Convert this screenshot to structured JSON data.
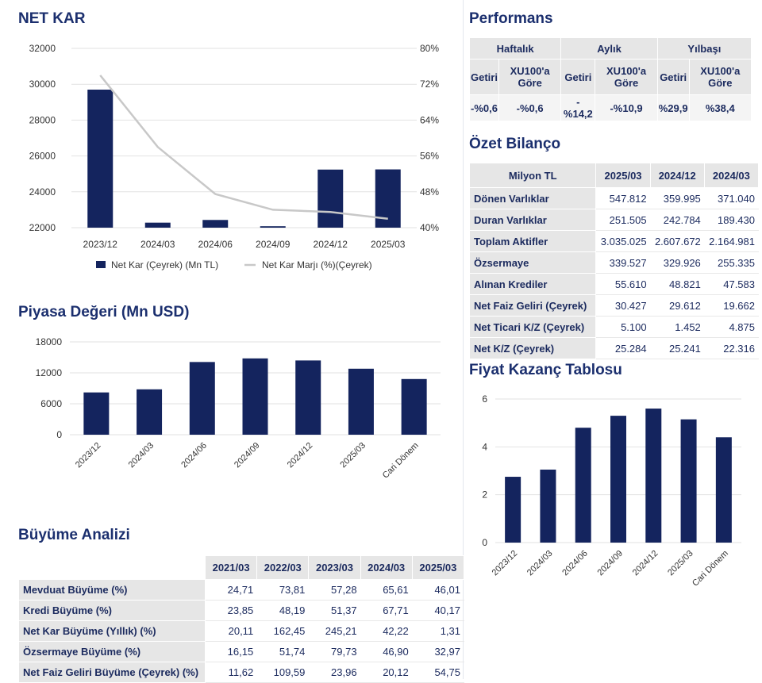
{
  "titles": {
    "net_kar": "NET KAR",
    "piyasa": "Piyasa Değeri (Mn USD)",
    "buyume": "Büyüme Analizi",
    "performans": "Performans",
    "ozet": "Özet Bilanço",
    "fk": "Fiyat Kazanç Tablosu"
  },
  "colors": {
    "bar": "#14245e",
    "line": "#c8c8c8",
    "title": "#1b2f6e",
    "header_bg": "#e6e6e6"
  },
  "chart_data": [
    {
      "type": "bar",
      "categories": [
        "2023/12",
        "2024/03",
        "2024/06",
        "2024/09",
        "2024/12",
        "2025/03"
      ],
      "series": [
        {
          "name": "Net Kar (Çeyrek) (Mn TL)",
          "values": [
            29700,
            22280,
            22430,
            22080,
            25240,
            25250
          ],
          "axis": "left"
        },
        {
          "name": "Net Kar Marjı (%)(Çeyrek)",
          "type": "line",
          "values": [
            74,
            58,
            47.5,
            44,
            43.5,
            42
          ],
          "axis": "right"
        }
      ],
      "y_left": {
        "ticks": [
          "32000",
          "30000",
          "28000",
          "26000",
          "24000",
          "22000"
        ],
        "min": 22000,
        "max": 32000
      },
      "y_right": {
        "ticks": [
          "80%",
          "72%",
          "64%",
          "56%",
          "48%",
          "40%"
        ],
        "min": 40,
        "max": 80
      },
      "legend": "bottom"
    },
    {
      "type": "bar",
      "categories": [
        "2023/12",
        "2024/03",
        "2024/06",
        "2024/09",
        "2024/12",
        "2025/03",
        "Cari Dönem"
      ],
      "values": [
        8200,
        8800,
        14100,
        14800,
        14400,
        12800,
        10800
      ],
      "y_ticks": [
        "18000",
        "12000",
        "6000",
        "0"
      ],
      "ylim": [
        0,
        18000
      ]
    },
    {
      "type": "bar",
      "categories": [
        "2023/12",
        "2024/03",
        "2024/06",
        "2024/09",
        "2024/12",
        "2025/03",
        "Cari Dönem"
      ],
      "values": [
        2.75,
        3.05,
        4.8,
        5.3,
        5.6,
        5.15,
        4.4
      ],
      "y_ticks": [
        "6",
        "4",
        "2",
        "0"
      ],
      "ylim": [
        0,
        6
      ]
    }
  ],
  "performans": {
    "groups": [
      "Haftalık",
      "Aylık",
      "Yılbaşı"
    ],
    "subheaders": [
      "Getiri",
      "XU100'a Göre",
      "Getiri",
      "XU100'a Göre",
      "Getiri",
      "XU100'a Göre"
    ],
    "values": [
      "-%0,6",
      "-%0,6",
      "-%14,2",
      "-%10,9",
      "%29,9",
      "%38,4"
    ]
  },
  "ozet": {
    "header": [
      "Milyon TL",
      "2025/03",
      "2024/12",
      "2024/03"
    ],
    "rows": [
      [
        "Dönen Varlıklar",
        "547.812",
        "359.995",
        "371.040"
      ],
      [
        "Duran Varlıklar",
        "251.505",
        "242.784",
        "189.430"
      ],
      [
        "Toplam Aktifler",
        "3.035.025",
        "2.607.672",
        "2.164.981"
      ],
      [
        "Özsermaye",
        "339.527",
        "329.926",
        "255.335"
      ],
      [
        "Alınan Krediler",
        "55.610",
        "48.821",
        "47.583"
      ],
      [
        "Net Faiz Geliri (Çeyrek)",
        "30.427",
        "29.612",
        "19.662"
      ],
      [
        "Net Ticari K/Z (Çeyrek)",
        "5.100",
        "1.452",
        "4.875"
      ],
      [
        "Net K/Z (Çeyrek)",
        "25.284",
        "25.241",
        "22.316"
      ]
    ]
  },
  "buyume": {
    "header": [
      "",
      "2021/03",
      "2022/03",
      "2023/03",
      "2024/03",
      "2025/03"
    ],
    "rows": [
      [
        "Mevduat Büyüme (%)",
        "24,71",
        "73,81",
        "57,28",
        "65,61",
        "46,01"
      ],
      [
        "Kredi Büyüme (%)",
        "23,85",
        "48,19",
        "51,37",
        "67,71",
        "40,17"
      ],
      [
        "Net Kar Büyüme (Yıllık) (%)",
        "20,11",
        "162,45",
        "245,21",
        "42,22",
        "1,31"
      ],
      [
        "Özsermaye Büyüme (%)",
        "16,15",
        "51,74",
        "79,73",
        "46,90",
        "32,97"
      ],
      [
        "Net Faiz Geliri Büyüme (Çeyrek) (%)",
        "11,62",
        "109,59",
        "23,96",
        "20,12",
        "54,75"
      ]
    ]
  }
}
